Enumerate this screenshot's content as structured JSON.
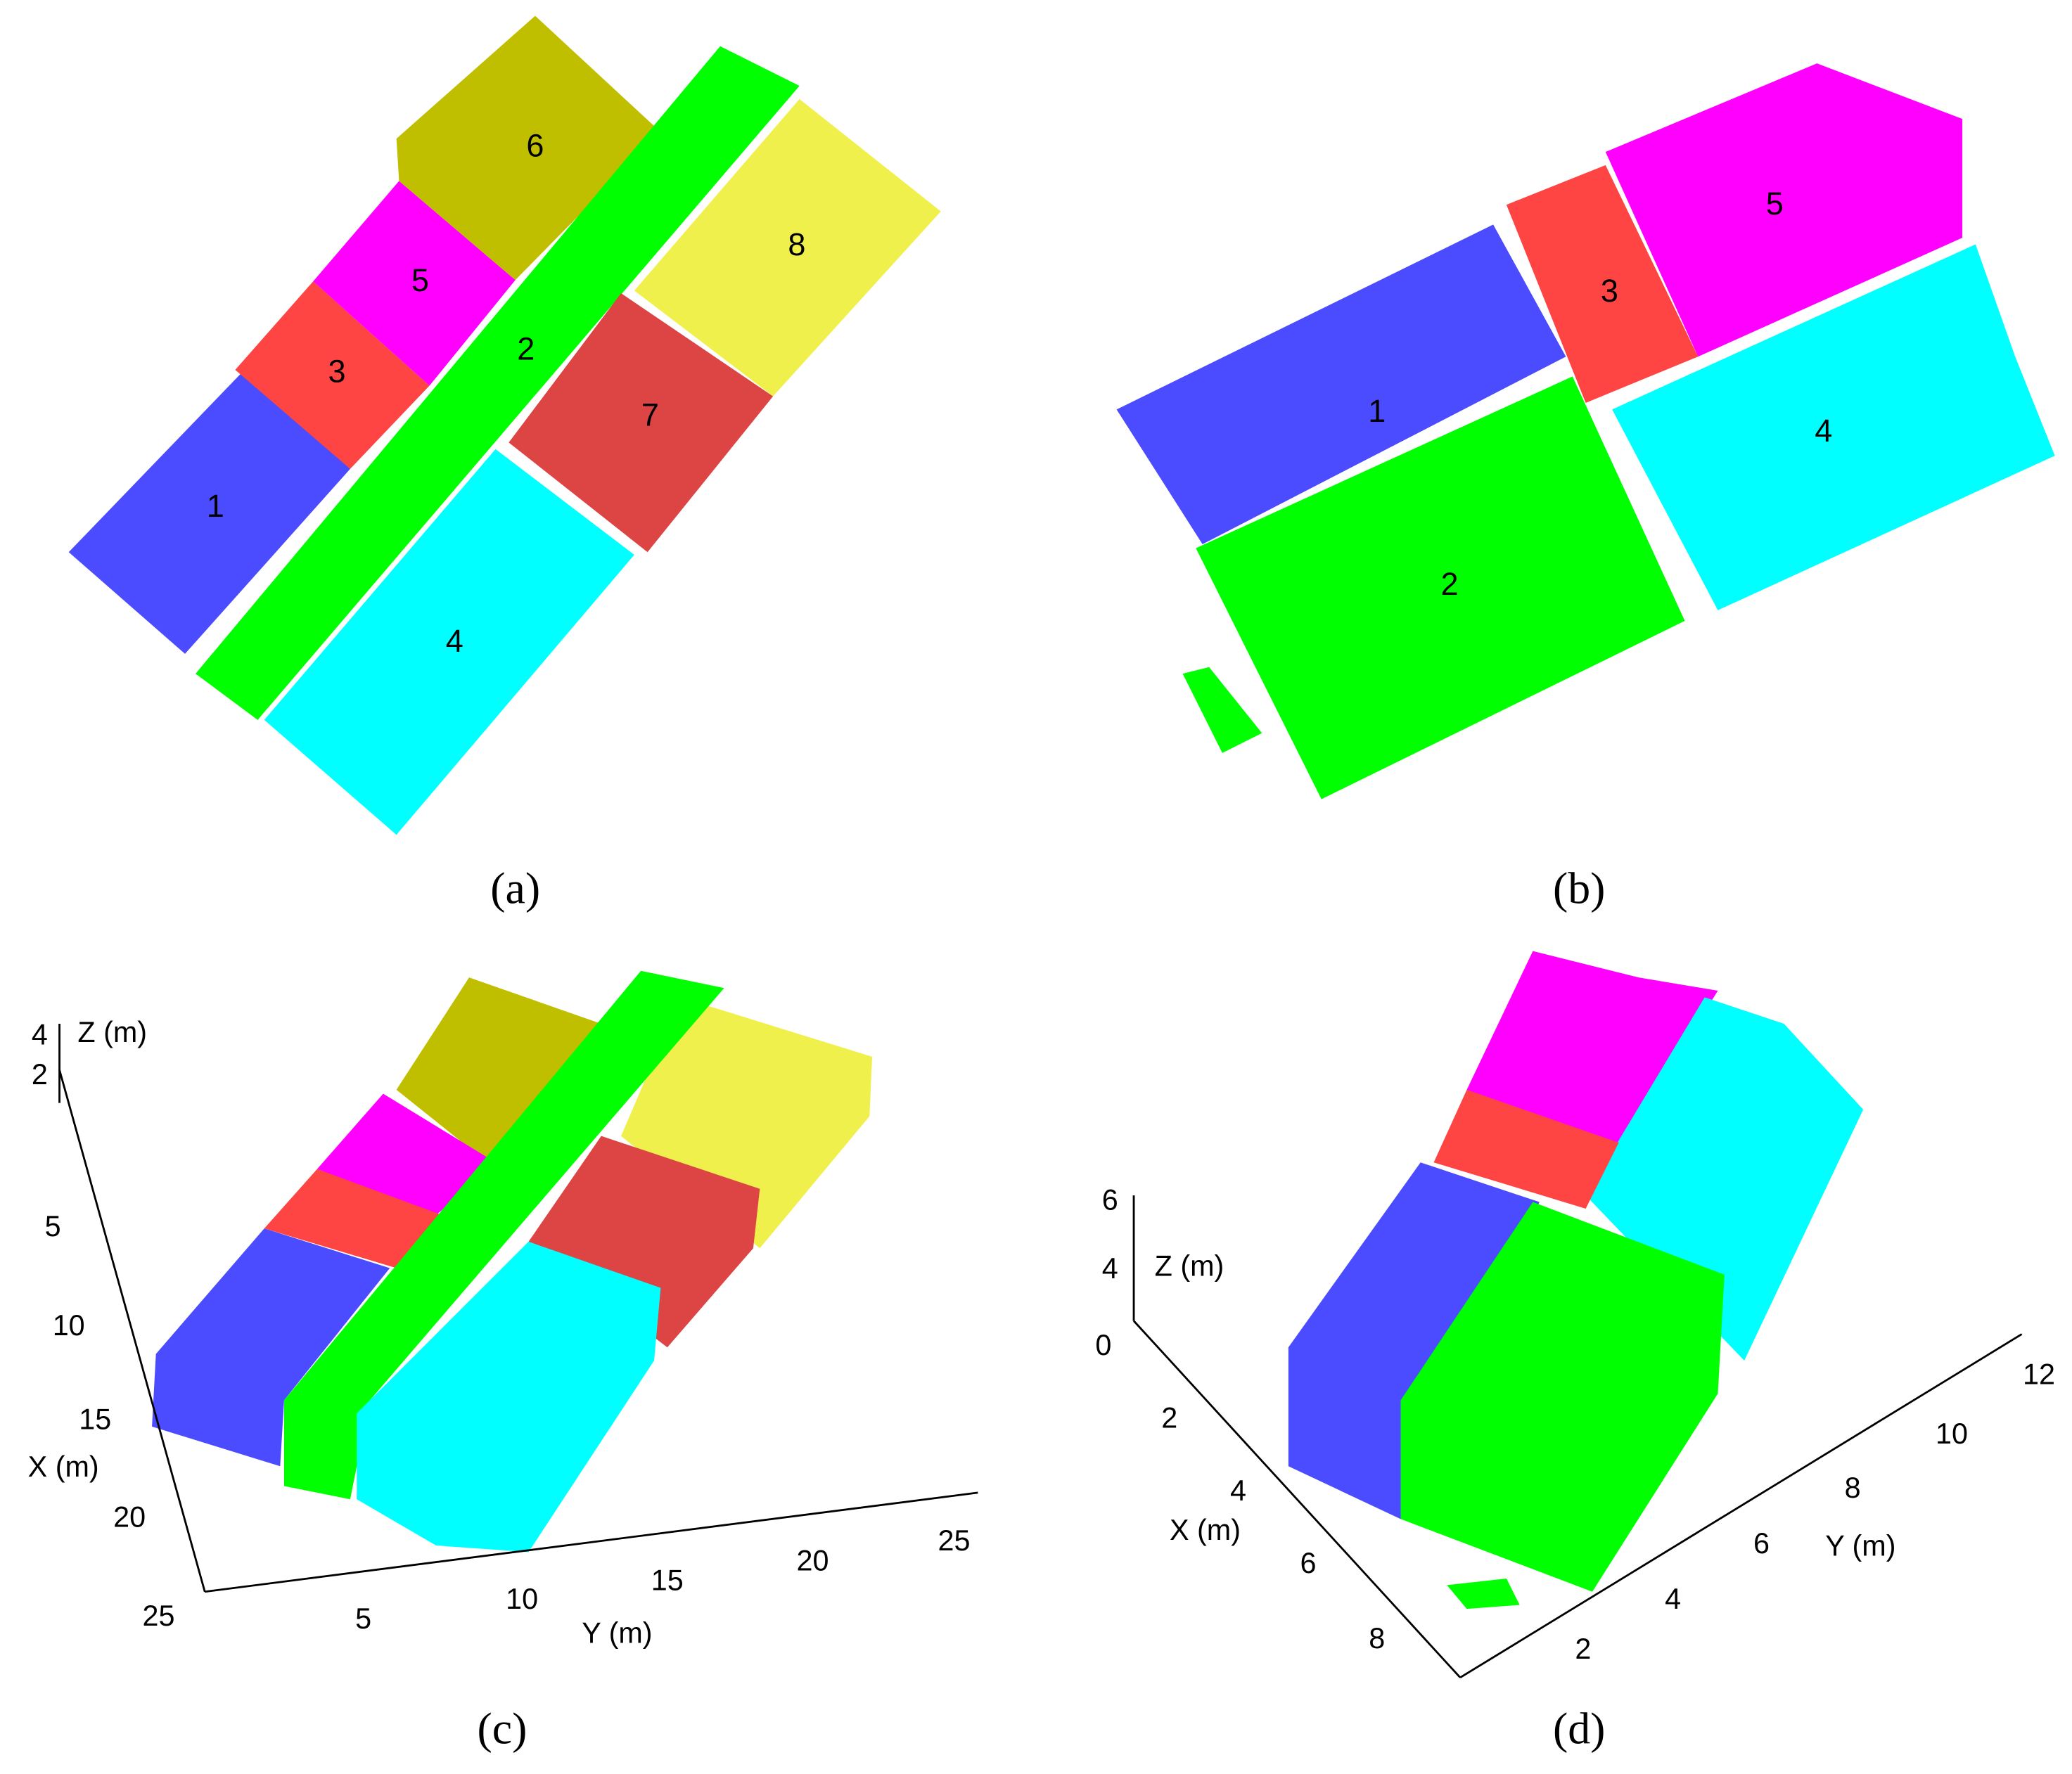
{
  "panels": [
    {
      "caption": "(a)",
      "regions": [
        "1",
        "3",
        "5",
        "6",
        "2",
        "8",
        "7",
        "4"
      ]
    },
    {
      "caption": "(b)",
      "regions": [
        "1",
        "3",
        "5",
        "4",
        "2"
      ]
    },
    {
      "caption": "(c)",
      "z_ticks": [
        4,
        2
      ],
      "x_ticks": [
        5,
        10,
        15,
        20,
        25
      ],
      "y_ticks": [
        5,
        10,
        15,
        20,
        25
      ],
      "x_label": "X (m)",
      "y_label": "Y (m)",
      "z_label": "Z (m)"
    },
    {
      "caption": "(d)",
      "z_ticks": [
        6,
        4,
        0
      ],
      "x_ticks": [
        2,
        4,
        6,
        8
      ],
      "y_ticks": [
        2,
        4,
        6,
        8,
        10,
        12
      ],
      "x_label": "X (m)",
      "y_label": "Y (m)",
      "z_label": "Z (m)"
    }
  ]
}
